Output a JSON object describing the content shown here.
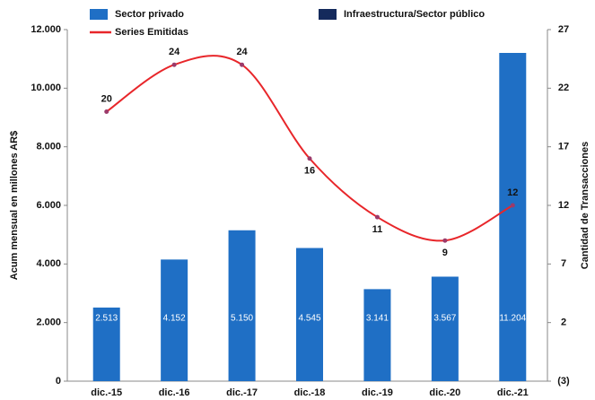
{
  "chart_data": {
    "type": "bar_line",
    "categories": [
      "dic.-15",
      "dic.-16",
      "dic.-17",
      "dic.-18",
      "dic.-19",
      "dic.-20",
      "dic.-21"
    ],
    "series": [
      {
        "name": "Sector privado",
        "color": "#1f6fc5",
        "values": [
          2513,
          4152,
          5150,
          4545,
          3141,
          3567,
          11204
        ],
        "value_labels": [
          "2.513",
          "4.152",
          "5.150",
          "4.545",
          "3.141",
          "3.567",
          "11.204"
        ]
      },
      {
        "name": "Infraestructura/Sector público",
        "color": "#142a5c",
        "values": [
          null,
          null,
          null,
          null,
          null,
          null,
          null
        ]
      },
      {
        "name": "Series Emitidas",
        "color": "#e8262a",
        "axis": "y2",
        "line": true,
        "values": [
          20,
          24,
          24,
          16,
          11,
          9,
          12
        ]
      }
    ],
    "ylabel": "Acum mensual en millones AR$",
    "y2label": "Cantidad de Transacciones",
    "ylim": [
      0,
      12000
    ],
    "yticks": [
      0,
      {
        "value": 2000,
        "label": "2.000"
      },
      {
        "value": 4000,
        "label": "4.000"
      },
      {
        "value": 6000,
        "label": "6.000"
      },
      {
        "value": 8000,
        "label": "8.000"
      },
      {
        "value": 10000,
        "label": "10.000"
      },
      {
        "value": 12000,
        "label": "12.000"
      }
    ],
    "y2lim": [
      -3,
      27
    ],
    "y2ticks": [
      {
        "value": -3,
        "label": "(3)"
      },
      2,
      7,
      12,
      17,
      22,
      27
    ]
  }
}
